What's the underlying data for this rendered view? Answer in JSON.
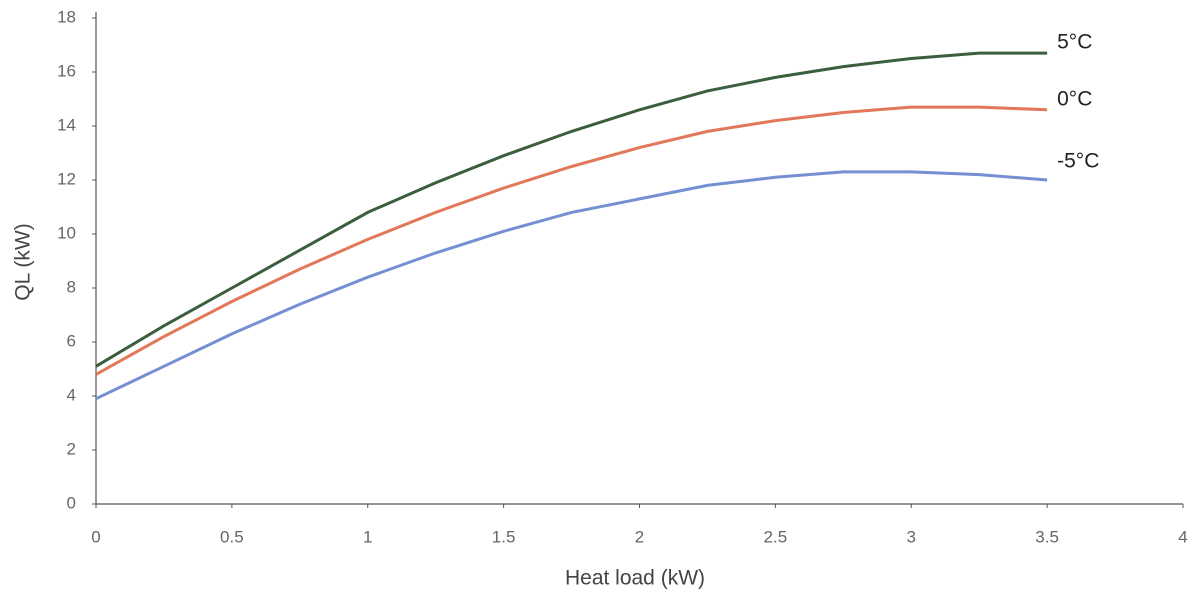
{
  "chart_data": {
    "type": "line",
    "x_label": "Heat load (kW)",
    "y_label": "QL (kW)",
    "x": [
      0,
      0.25,
      0.5,
      0.75,
      1,
      1.25,
      1.5,
      1.75,
      2,
      2.25,
      2.5,
      2.75,
      3,
      3.25,
      3.5
    ],
    "series": [
      {
        "name": "5°C",
        "color": "#3b5e3f",
        "values": [
          5.1,
          6.6,
          8.0,
          9.4,
          10.8,
          11.9,
          12.9,
          13.8,
          14.6,
          15.3,
          15.8,
          16.2,
          16.5,
          16.7,
          16.7
        ]
      },
      {
        "name": "0°C",
        "color": "#e2775a",
        "values": [
          4.8,
          6.2,
          7.5,
          8.7,
          9.8,
          10.8,
          11.7,
          12.5,
          13.2,
          13.8,
          14.2,
          14.5,
          14.7,
          14.7,
          14.6
        ]
      },
      {
        "name": "-5°C",
        "color": "#7490d2",
        "values": [
          3.9,
          5.1,
          6.3,
          7.4,
          8.4,
          9.3,
          10.1,
          10.8,
          11.3,
          11.8,
          12.1,
          12.3,
          12.3,
          12.2,
          12.0
        ]
      }
    ],
    "xlim": [
      0,
      4
    ],
    "xticks": [
      0,
      0.5,
      1,
      1.5,
      2,
      2.5,
      3,
      3.5,
      4
    ],
    "ylim": [
      0,
      18
    ],
    "yticks": [
      0,
      2,
      4,
      6,
      8,
      10,
      12,
      14,
      16,
      18
    ],
    "grid": false
  }
}
